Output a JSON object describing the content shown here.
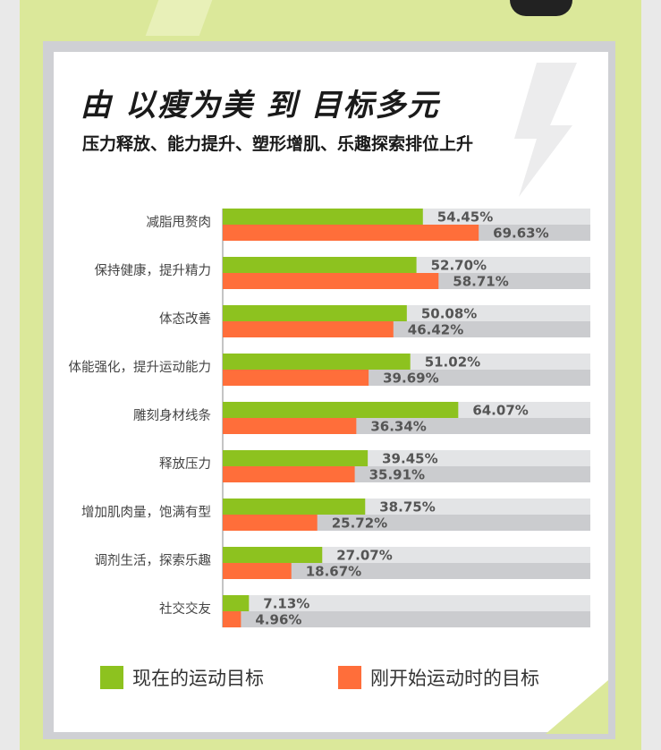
{
  "title": "由 以瘦为美 到 目标多元",
  "subtitle": "压力释放、能力提升、塑形增肌、乐趣探索排位上升",
  "colors": {
    "current": "#8dc21f",
    "initial": "#ff6e3a",
    "track_current": "#e3e4e6",
    "track_initial": "#cbcccf"
  },
  "chart_data": {
    "type": "bar",
    "orientation": "horizontal",
    "categories": [
      "减脂甩赘肉",
      "保持健康，提升精力",
      "体态改善",
      "体能强化，提升运动能力",
      "雕刻身材线条",
      "释放压力",
      "增加肌肉量，饱满有型",
      "调剂生活，探索乐趣",
      "社交交友"
    ],
    "series": [
      {
        "name": "现在的运动目标",
        "values": [
          54.45,
          52.7,
          50.08,
          51.02,
          64.07,
          39.45,
          38.75,
          27.07,
          7.13
        ],
        "labels": [
          "54.45%",
          "52.70%",
          "50.08%",
          "51.02%",
          "64.07%",
          "39.45%",
          "38.75%",
          "27.07%",
          "7.13%"
        ]
      },
      {
        "name": "刚开始运动时的目标",
        "values": [
          69.63,
          58.71,
          46.42,
          39.69,
          36.34,
          35.91,
          25.72,
          18.67,
          4.96
        ],
        "labels": [
          "69.63%",
          "58.71%",
          "46.42%",
          "39.69%",
          "36.34%",
          "35.91%",
          "25.72%",
          "18.67%",
          "4.96%"
        ]
      }
    ],
    "xlim": [
      0,
      100
    ],
    "grid": false,
    "legend_position": "bottom"
  }
}
